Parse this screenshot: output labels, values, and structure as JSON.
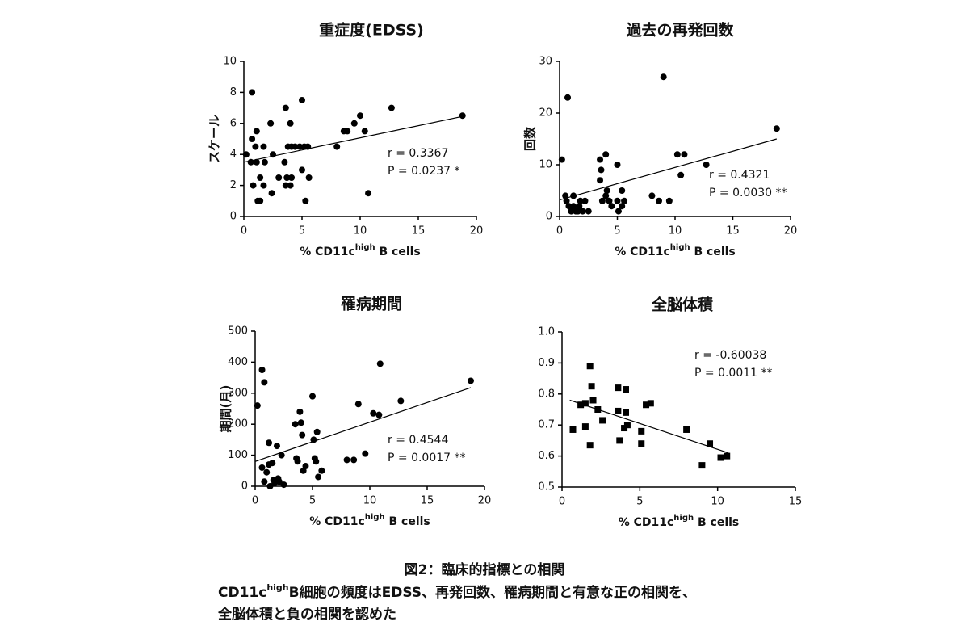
{
  "chart_data": [
    {
      "type": "scatter",
      "title": "重症度(EDSS)",
      "y_label": "スケール",
      "x_label": {
        "prefix": "% CD11c",
        "sup": "high",
        "suffix": " B cells"
      },
      "marker": "circle",
      "color": "#000000",
      "x": [
        0.2,
        0.7,
        0.6,
        0.8,
        0.7,
        1.1,
        1.0,
        1.1,
        1.2,
        1.4,
        1.4,
        1.7,
        1.8,
        1.7,
        2.3,
        2.5,
        2.4,
        3.0,
        3.5,
        3.6,
        3.8,
        3.7,
        3.6,
        4.0,
        4.1,
        4.1,
        4.0,
        4.4,
        4.8,
        5.0,
        5.0,
        5.2,
        5.3,
        5.6,
        5.5,
        8.0,
        8.6,
        8.9,
        9.5,
        10.0,
        10.4,
        10.7,
        12.7,
        18.8
      ],
      "values": [
        4,
        8,
        3.5,
        2,
        5,
        5.5,
        4.5,
        3.5,
        1,
        1,
        2.5,
        4.5,
        3.5,
        2,
        6,
        4,
        1.5,
        2.5,
        3.5,
        7,
        4.5,
        2.5,
        2,
        6,
        4.5,
        2.5,
        2,
        4.5,
        4.5,
        7.5,
        3,
        4.5,
        1,
        2.5,
        4.5,
        4.5,
        5.5,
        5.5,
        6,
        6.5,
        5.5,
        1.5,
        7,
        6.5
      ],
      "trendline": {
        "x": [
          0,
          18.8
        ],
        "y": [
          3.5,
          6.45
        ]
      },
      "annotations": [
        "r = 0.3367",
        "P = 0.0237 *"
      ],
      "xlim": [
        0,
        20
      ],
      "xticks": [
        0,
        5,
        10,
        15,
        20
      ],
      "ylim": [
        0,
        10
      ],
      "yticks": [
        0,
        2,
        4,
        6,
        8,
        10
      ]
    },
    {
      "type": "scatter",
      "title": "過去の再発回数",
      "y_label": "回数",
      "x_label": {
        "prefix": "% CD11c",
        "sup": "high",
        "suffix": " B cells"
      },
      "marker": "circle",
      "color": "#000000",
      "x": [
        0.2,
        0.7,
        0.5,
        0.6,
        0.8,
        1.0,
        1.2,
        1.2,
        1.4,
        1.6,
        1.7,
        1.8,
        2.0,
        2.2,
        2.5,
        3.5,
        3.6,
        3.5,
        3.7,
        4.0,
        4.0,
        4.1,
        4.3,
        4.5,
        5.0,
        5.0,
        5.1,
        5.4,
        5.4,
        5.6,
        8.0,
        8.6,
        9.0,
        9.5,
        10.2,
        10.5,
        10.8,
        12.7,
        18.8
      ],
      "values": [
        11,
        23,
        4,
        3,
        2,
        1,
        4,
        2,
        1,
        1,
        2,
        3,
        1,
        3,
        1,
        11,
        9,
        7,
        3,
        12,
        4,
        5,
        3,
        2,
        10,
        3,
        1,
        5,
        2,
        3,
        4,
        3,
        27,
        3,
        12,
        8,
        12,
        10,
        17
      ],
      "trendline": {
        "x": [
          0,
          18.8
        ],
        "y": [
          3.2,
          15
        ]
      },
      "annotations": [
        "r = 0.4321",
        "P = 0.0030 **"
      ],
      "xlim": [
        0,
        20
      ],
      "xticks": [
        0,
        5,
        10,
        15,
        20
      ],
      "ylim": [
        0,
        30
      ],
      "yticks": [
        0,
        10,
        20,
        30
      ]
    },
    {
      "type": "scatter",
      "title": "罹病期間",
      "y_label": "期間(月)",
      "x_label": {
        "prefix": "% CD11c",
        "sup": "high",
        "suffix": " B cells"
      },
      "marker": "circle",
      "color": "#000000",
      "x": [
        0.2,
        0.6,
        0.8,
        0.6,
        0.8,
        1.0,
        1.2,
        1.2,
        1.3,
        1.5,
        1.6,
        1.7,
        1.9,
        2.0,
        2.1,
        2.3,
        2.5,
        3.5,
        3.6,
        3.7,
        3.9,
        4.0,
        4.1,
        4.2,
        4.4,
        5.0,
        5.1,
        5.2,
        5.3,
        5.4,
        5.5,
        5.8,
        8.0,
        8.6,
        9.0,
        9.6,
        10.3,
        10.8,
        10.9,
        12.7,
        18.8
      ],
      "values": [
        260,
        375,
        335,
        60,
        15,
        45,
        140,
        70,
        0,
        75,
        20,
        10,
        130,
        25,
        15,
        100,
        5,
        200,
        90,
        80,
        240,
        205,
        165,
        50,
        65,
        290,
        150,
        90,
        80,
        175,
        30,
        50,
        85,
        85,
        265,
        105,
        235,
        230,
        395,
        275,
        340
      ],
      "trendline": {
        "x": [
          0,
          18.8
        ],
        "y": [
          80,
          318
        ]
      },
      "annotations": [
        "r = 0.4544",
        "P = 0.0017 **"
      ],
      "xlim": [
        0,
        20
      ],
      "xticks": [
        0,
        5,
        10,
        15,
        20
      ],
      "ylim": [
        0,
        500
      ],
      "yticks": [
        0,
        100,
        200,
        300,
        400,
        500
      ]
    },
    {
      "type": "scatter",
      "title": "全脳体積",
      "x_label": {
        "prefix": "% CD11c",
        "sup": "high",
        "suffix": " B cells"
      },
      "marker": "square",
      "color": "#000000",
      "x": [
        0.7,
        1.2,
        1.5,
        1.5,
        1.8,
        1.9,
        1.8,
        2.0,
        2.3,
        2.6,
        3.6,
        3.6,
        3.7,
        4.0,
        4.1,
        4.1,
        4.2,
        5.1,
        5.1,
        5.4,
        5.7,
        8.0,
        9.0,
        9.5,
        10.2,
        10.6
      ],
      "values": [
        0.685,
        0.765,
        0.695,
        0.77,
        0.89,
        0.825,
        0.635,
        0.78,
        0.75,
        0.715,
        0.82,
        0.745,
        0.65,
        0.69,
        0.815,
        0.74,
        0.7,
        0.68,
        0.64,
        0.765,
        0.77,
        0.685,
        0.57,
        0.64,
        0.595,
        0.6
      ],
      "trendline": {
        "x": [
          0.5,
          10.7
        ],
        "y": [
          0.78,
          0.61
        ]
      },
      "annotations": [
        "r = -0.60038",
        "P = 0.0011 **"
      ],
      "xlim": [
        0,
        15
      ],
      "xticks": [
        0,
        5,
        10,
        15
      ],
      "ylim": [
        0.5,
        1
      ],
      "yticks": [
        0.5,
        0.6,
        0.7,
        0.8,
        0.9,
        {
          "value": 1,
          "label": "1.0"
        }
      ]
    }
  ],
  "caption": {
    "title": "図2：臨床的指標との相関",
    "line2": {
      "prefix": "CD11c",
      "sup": "high",
      "suffix": "B細胞の頻度はEDSS、再発回数、罹病期間と有意な正の相関を、"
    },
    "line3": "全脳体積と負の相関を認めた"
  }
}
